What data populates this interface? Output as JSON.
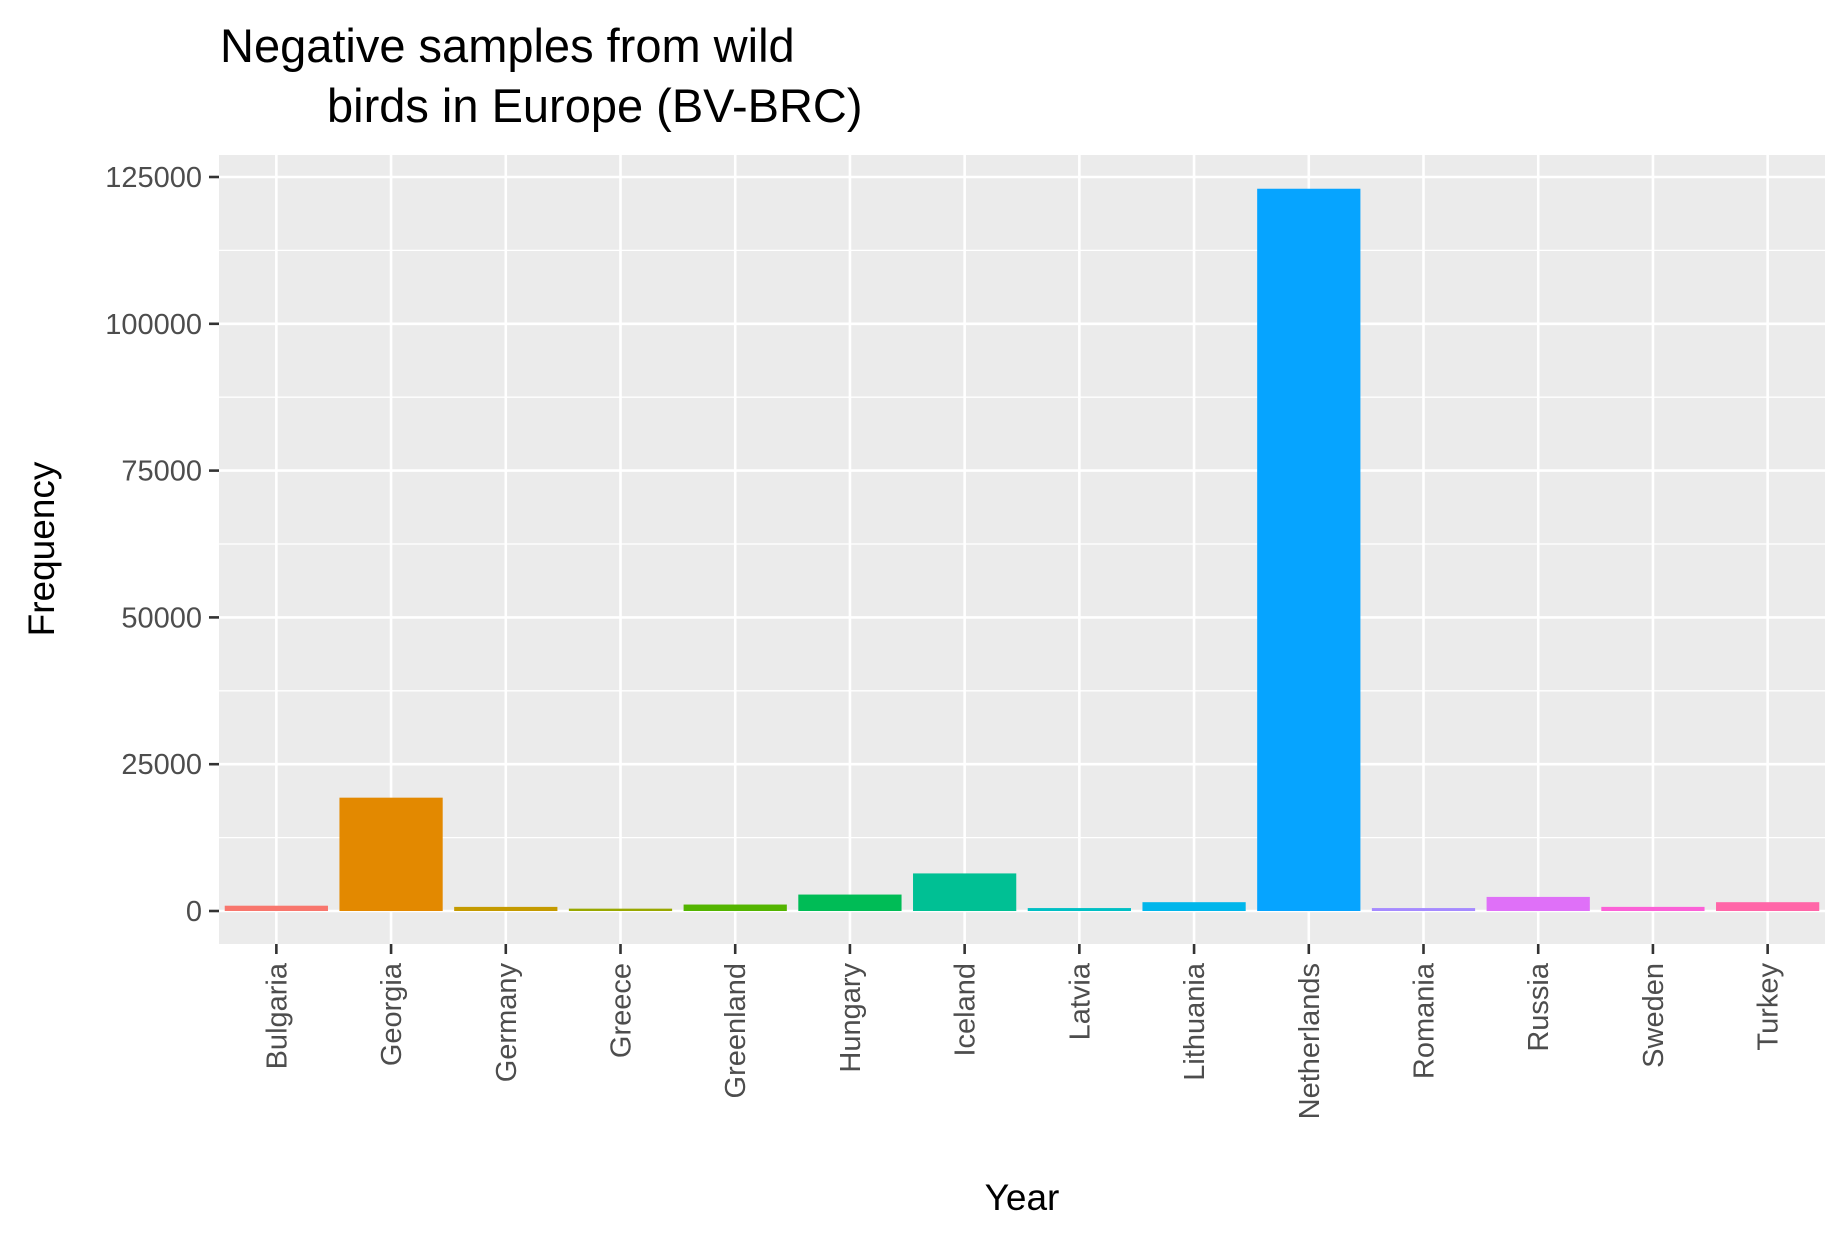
{
  "chart_data": {
    "type": "bar",
    "title_lines": [
      "Negative samples from wild",
      "birds in Europe (BV-BRC)"
    ],
    "xlabel": "Year",
    "ylabel": "Frequency",
    "ylim": [
      -6000,
      129000
    ],
    "y_ticks": [
      0,
      25000,
      50000,
      75000,
      100000,
      125000
    ],
    "y_tick_labels": [
      "0",
      "25000",
      "50000",
      "75000",
      "100000",
      "125000"
    ],
    "grid": true,
    "legend": "none",
    "categories": [
      "Bulgaria",
      "Georgia",
      "Germany",
      "Greece",
      "Greenland",
      "Hungary",
      "Iceland",
      "Latvia",
      "Lithuania",
      "Netherlands",
      "Romania",
      "Russia",
      "Sweden",
      "Turkey"
    ],
    "values": [
      900,
      19300,
      700,
      400,
      1100,
      2800,
      6400,
      500,
      1500,
      123000,
      500,
      2400,
      700,
      1500
    ],
    "colors": [
      "#F8766D",
      "#E38900",
      "#C49A00",
      "#99A800",
      "#53B400",
      "#00BC56",
      "#00C094",
      "#00BFC4",
      "#00B6EB",
      "#06A4FF",
      "#A58AFF",
      "#DF70F8",
      "#FB61D7",
      "#FF66A8"
    ]
  }
}
